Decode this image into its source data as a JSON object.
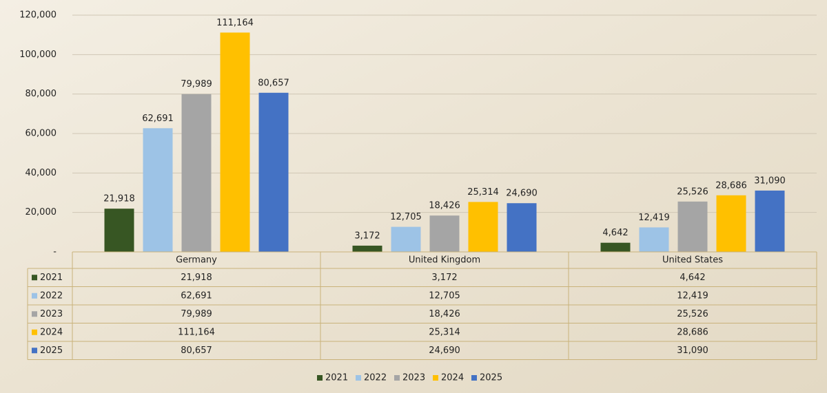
{
  "chart_data": {
    "type": "bar",
    "categories": [
      "Germany",
      "United Kingdom",
      "United States"
    ],
    "series": [
      {
        "name": "2021",
        "color": "#375623",
        "values": [
          21918,
          3172,
          4642
        ],
        "value_labels": [
          "21,918",
          "3,172",
          "4,642"
        ]
      },
      {
        "name": "2022",
        "color": "#9dc3e6",
        "values": [
          62691,
          12705,
          12419
        ],
        "value_labels": [
          "62,691",
          "12,705",
          "12,419"
        ]
      },
      {
        "name": "2023",
        "color": "#a5a5a5",
        "values": [
          79989,
          18426,
          25526
        ],
        "value_labels": [
          "79,989",
          "18,426",
          "25,526"
        ]
      },
      {
        "name": "2024",
        "color": "#ffc000",
        "values": [
          111164,
          25314,
          28686
        ],
        "value_labels": [
          "111,164",
          "25,314",
          "28,686"
        ]
      },
      {
        "name": "2025",
        "color": "#4472c4",
        "values": [
          80657,
          24690,
          31090
        ],
        "value_labels": [
          "80,657",
          "24,690",
          "31,090"
        ]
      }
    ],
    "ylim": [
      0,
      120000
    ],
    "yticks": [
      {
        "value": 0,
        "label": "-"
      },
      {
        "value": 20000,
        "label": "20,000"
      },
      {
        "value": 40000,
        "label": "40,000"
      },
      {
        "value": 60000,
        "label": "60,000"
      },
      {
        "value": 80000,
        "label": "80,000"
      },
      {
        "value": 100000,
        "label": "100,000"
      },
      {
        "value": 120000,
        "label": "120,000"
      }
    ],
    "grid": true,
    "data_table": true,
    "legend": "bottom"
  }
}
